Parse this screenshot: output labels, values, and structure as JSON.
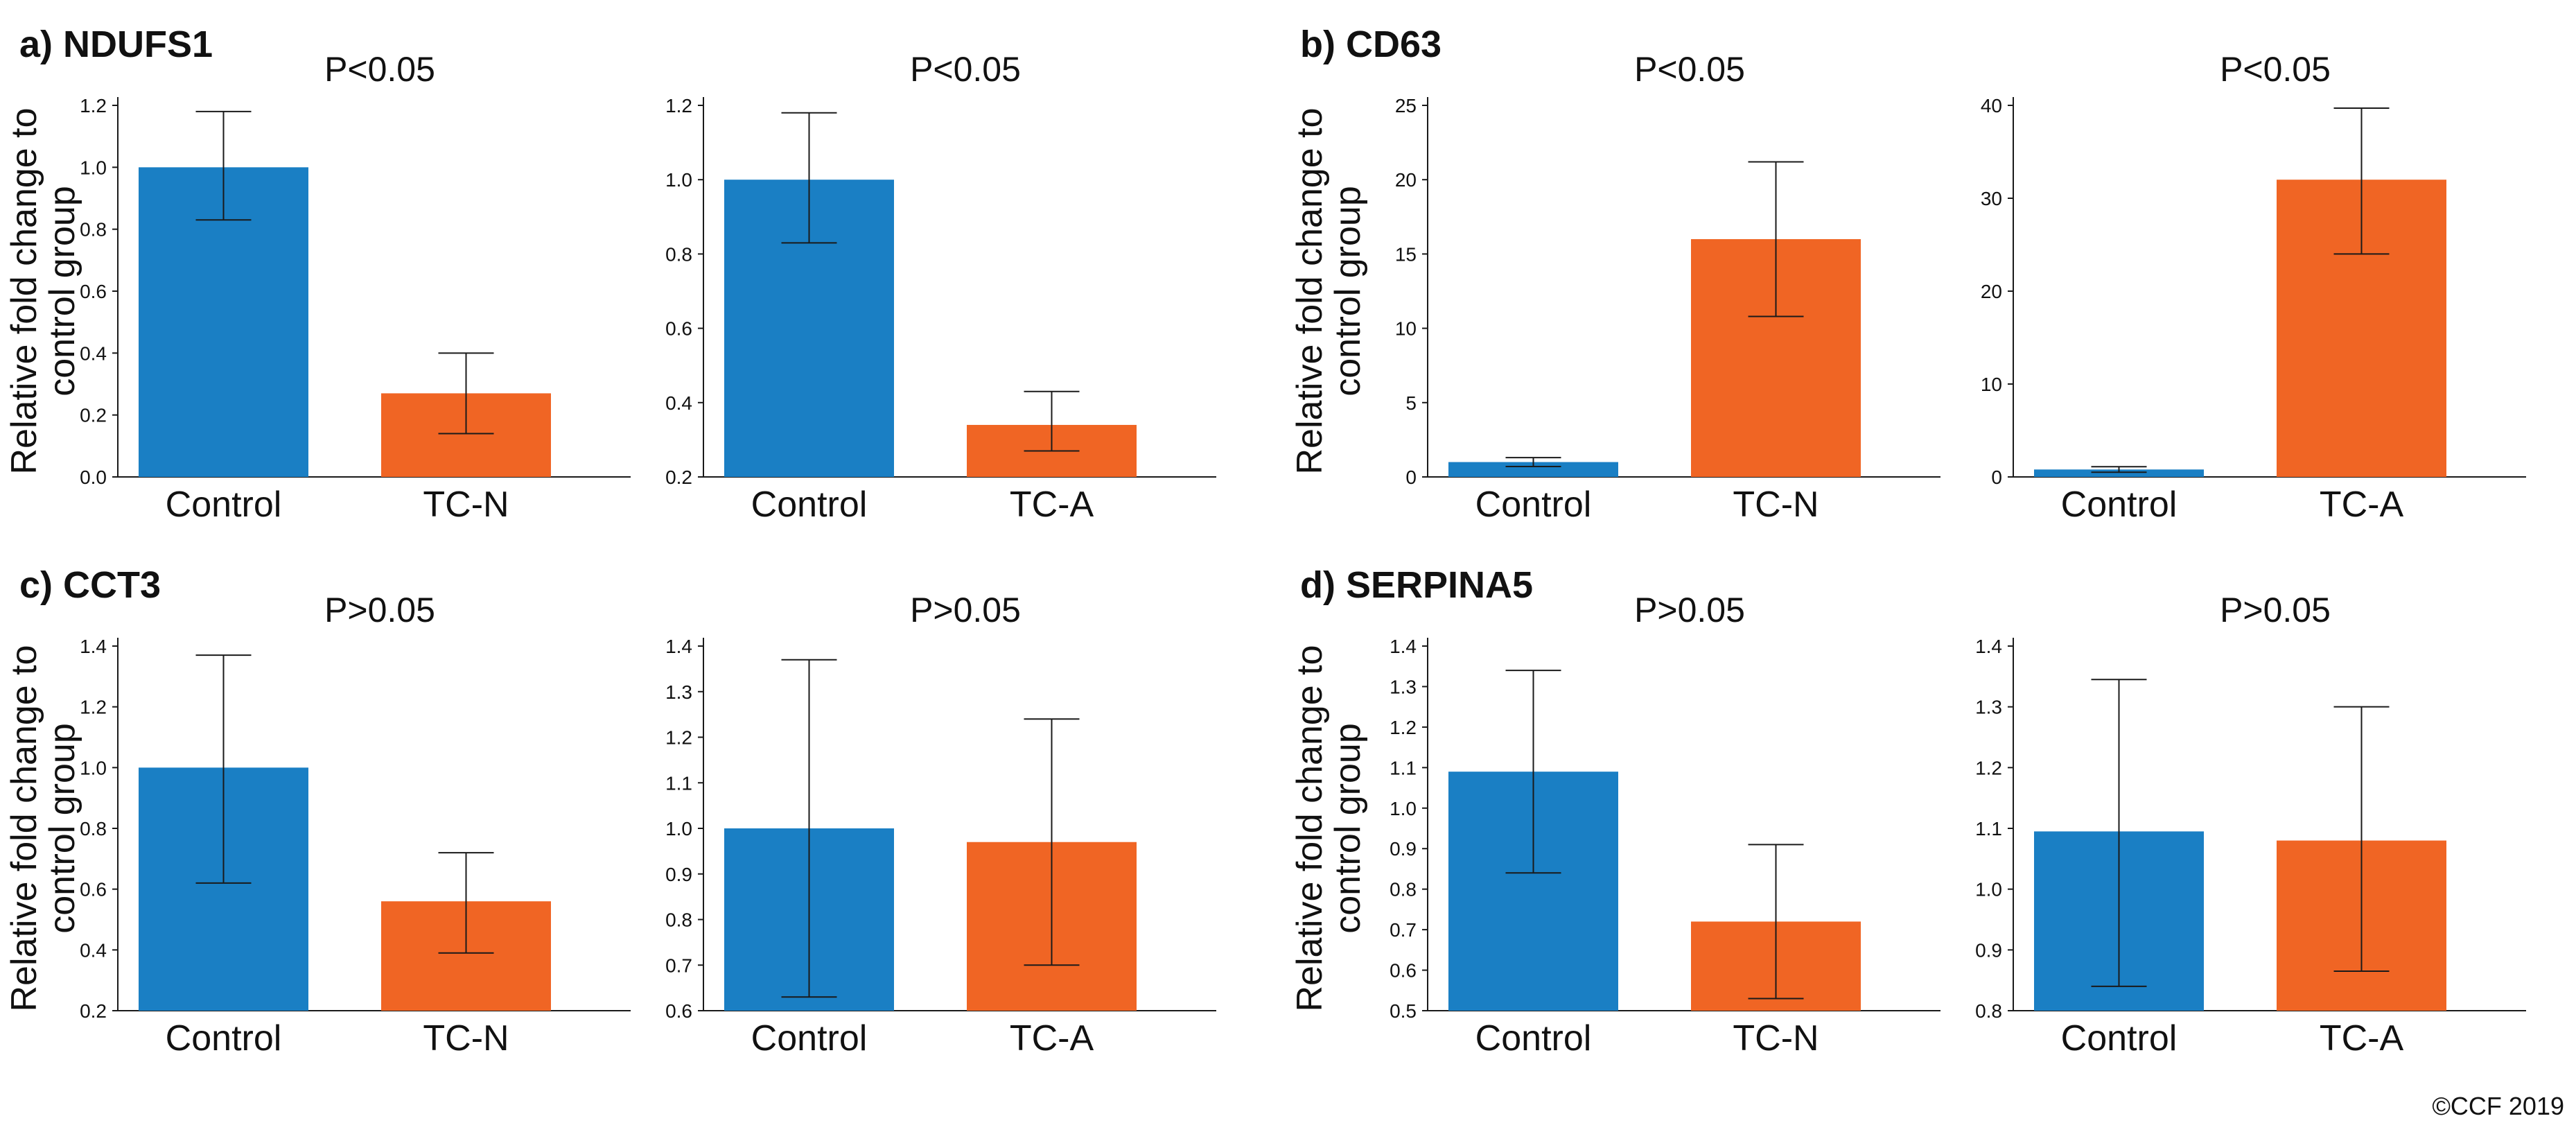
{
  "colors": {
    "control": "#1a7fc4",
    "treated": "#f06524",
    "axis": "#1a1a1a",
    "error_bar": "#1a1a1a"
  },
  "credit": "©CCF 2019",
  "ylabel_lines": [
    "Relative fold change to",
    "control group"
  ],
  "panels": [
    {
      "label": "a) NDUFS1"
    },
    {
      "label": "b) CD63"
    },
    {
      "label": "c) CCT3"
    },
    {
      "label": "d) SERPINA5"
    }
  ],
  "chart_data": [
    {
      "type": "bar",
      "panel": "a) NDUFS1",
      "title": "P<0.05",
      "ylabel": "Relative fold change to control group",
      "categories": [
        "Control",
        "TC-N"
      ],
      "values": [
        1.0,
        0.27
      ],
      "error_low": [
        0.83,
        0.14
      ],
      "error_high": [
        1.18,
        0.4
      ],
      "ylim": [
        0.0,
        1.2
      ],
      "yticks": [
        "0.0",
        "0.2",
        "0.4",
        "0.6",
        "0.8",
        "1.0",
        "1.2"
      ],
      "bar_base": 0.0
    },
    {
      "type": "bar",
      "panel": "a) NDUFS1",
      "title": "P<0.05",
      "ylabel": "",
      "categories": [
        "Control",
        "TC-A"
      ],
      "values": [
        1.0,
        0.34
      ],
      "error_low": [
        0.83,
        0.27
      ],
      "error_high": [
        1.18,
        0.43
      ],
      "ylim": [
        0.2,
        1.2
      ],
      "yticks": [
        "0.2",
        "0.4",
        "0.6",
        "0.8",
        "1.0",
        "1.2"
      ],
      "bar_base": 0.2
    },
    {
      "type": "bar",
      "panel": "b) CD63",
      "title": "P<0.05",
      "ylabel": "Relative fold change to control group",
      "categories": [
        "Control",
        "TC-N"
      ],
      "values": [
        1.0,
        16.0
      ],
      "error_low": [
        0.7,
        10.8
      ],
      "error_high": [
        1.3,
        21.2
      ],
      "ylim": [
        0,
        25
      ],
      "yticks": [
        "0",
        "5",
        "10",
        "15",
        "20",
        "25"
      ],
      "bar_base": 0
    },
    {
      "type": "bar",
      "panel": "b) CD63",
      "title": "P<0.05",
      "ylabel": "",
      "categories": [
        "Control",
        "TC-A"
      ],
      "values": [
        0.8,
        32.0
      ],
      "error_low": [
        0.5,
        24.0
      ],
      "error_high": [
        1.1,
        39.7
      ],
      "ylim": [
        0,
        40
      ],
      "yticks": [
        "0",
        "10",
        "20",
        "30",
        "40"
      ],
      "bar_base": 0
    },
    {
      "type": "bar",
      "panel": "c) CCT3",
      "title": "P>0.05",
      "ylabel": "Relative fold change to control group",
      "categories": [
        "Control",
        "TC-N"
      ],
      "values": [
        1.0,
        0.56
      ],
      "error_low": [
        0.62,
        0.39
      ],
      "error_high": [
        1.37,
        0.72
      ],
      "ylim": [
        0.2,
        1.4
      ],
      "yticks": [
        "0.2",
        "0.4",
        "0.6",
        "0.8",
        "1.0",
        "1.2",
        "1.4"
      ],
      "bar_base": 0.2
    },
    {
      "type": "bar",
      "panel": "c) CCT3",
      "title": "P>0.05",
      "ylabel": "",
      "categories": [
        "Control",
        "TC-A"
      ],
      "values": [
        1.0,
        0.97
      ],
      "error_low": [
        0.63,
        0.7
      ],
      "error_high": [
        1.37,
        1.24
      ],
      "ylim": [
        0.6,
        1.4
      ],
      "yticks": [
        "0.6",
        "0.7",
        "0.8",
        "0.9",
        "1.0",
        "1.1",
        "1.2",
        "1.3",
        "1.4"
      ],
      "bar_base": 0.6
    },
    {
      "type": "bar",
      "panel": "d) SERPINA5",
      "title": "P>0.05",
      "ylabel": "Relative fold change to control group",
      "categories": [
        "Control",
        "TC-N"
      ],
      "values": [
        1.09,
        0.72
      ],
      "error_low": [
        0.84,
        0.53
      ],
      "error_high": [
        1.34,
        0.91
      ],
      "ylim": [
        0.5,
        1.4
      ],
      "yticks": [
        "0.5",
        "0.6",
        "0.7",
        "0.8",
        "0.9",
        "1.0",
        "1.1",
        "1.2",
        "1.3",
        "1.4"
      ],
      "bar_base": 0.5
    },
    {
      "type": "bar",
      "panel": "d) SERPINA5",
      "title": "P>0.05",
      "ylabel": "",
      "categories": [
        "Control",
        "TC-A"
      ],
      "values": [
        1.095,
        1.08
      ],
      "error_low": [
        0.84,
        0.865
      ],
      "error_high": [
        1.345,
        1.3
      ],
      "ylim": [
        0.8,
        1.4
      ],
      "yticks": [
        "0.8",
        "0.9",
        "1.0",
        "1.1",
        "1.2",
        "1.3",
        "1.4"
      ],
      "bar_base": 0.8
    }
  ]
}
